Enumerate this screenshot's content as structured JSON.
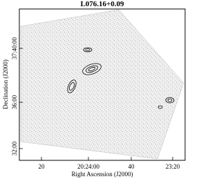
{
  "figure": {
    "title": "L076.16+0.09",
    "x_label": "Right Ascension (J2000)",
    "y_label": "Declination (J2000)",
    "x_ticks": [
      "20",
      "20:24:00",
      "40",
      "23:20"
    ],
    "y_ticks": [
      "37:40:00",
      "36:00",
      "32:00"
    ]
  }
}
